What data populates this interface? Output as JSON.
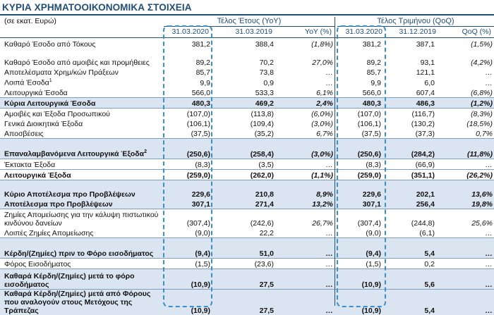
{
  "title": "ΚΥΡΙΑ ΧΡΗΜΑΤΟΟΙΚΟΝΟΜΙΚΑ ΣΤΟΙΧΕΙΑ",
  "unit": "(σε εκατ. Ευρώ)",
  "groups": {
    "yoy": "Τέλος Έτους (YoY)",
    "qoq": "Τέλος Τριμήνου (QoQ)"
  },
  "columns": [
    "31.03.2020",
    "31.03.2019",
    "YoY (%)",
    "31.03.2020",
    "31.12.2019",
    "QoQ (%)"
  ],
  "rows": [
    {
      "label": "Καθαρό Έσοδο από Τόκους",
      "c1": "381,2",
      "c2": "388,4",
      "yoy": "(1,8%)",
      "c4": "381,2",
      "c5": "387,1",
      "qoq": "(1,5%)"
    },
    {
      "label": "Καθαρό Έσοδο από αμοιβές και προμήθειες",
      "c1": "89,2",
      "c2": "70,2",
      "yoy": "27,0%",
      "c4": "89,2",
      "c5": "93,1",
      "qoq": "(4,2%)"
    },
    {
      "label": "Αποτελέσματα Χρημ/κών Πράξεων",
      "c1": "85,7",
      "c2": "73,8",
      "yoy": "…",
      "c4": "85,7",
      "c5": "121,1",
      "qoq": "…"
    },
    {
      "label": "Λοιπά Έσοδα",
      "sup": "1",
      "c1": "9,9",
      "c2": "0,9",
      "yoy": "…",
      "c4": "9,9",
      "c5": "6,0",
      "qoq": "…"
    },
    {
      "label": "Λειτουργικά Έσοδα",
      "c1": "566,0",
      "c2": "533,3",
      "yoy": "6,1%",
      "c4": "566,0",
      "c5": "607,4",
      "qoq": "(6,8%)"
    },
    {
      "label": "Κύρια Λειτουργικά Έσοδα",
      "c1": "480,3",
      "c2": "469,2",
      "yoy": "2,4%",
      "c4": "480,3",
      "c5": "486,3",
      "qoq": "(1,2%)"
    },
    {
      "label": "Αμοιβές και Έξοδα Προσωπικού",
      "c1": "(107,0)",
      "c2": "(113,8)",
      "yoy": "(6,0%)",
      "c4": "(107,0)",
      "c5": "(116,7)",
      "qoq": "(8,3%)"
    },
    {
      "label": "Γενικά Διοικητικά Έξοδα",
      "c1": "(106,1)",
      "c2": "(109,4)",
      "yoy": "(3,0%)",
      "c4": "(106,1)",
      "c5": "(130,2)",
      "qoq": "(18,5%)"
    },
    {
      "label": "Αποσβέσεις",
      "c1": "(37,5)",
      "c2": "(35,2)",
      "yoy": "6,7%",
      "c4": "(37,5)",
      "c5": "(37,3)",
      "qoq": "0,7%"
    },
    {
      "label": "Επαναλαμβανόμενα Λειτουργικά Έξοδα",
      "sup": "2",
      "c1": "(250,6)",
      "c2": "(258,4)",
      "yoy": "(3,0%)",
      "c4": "(250,6)",
      "c5": "(284,2)",
      "qoq": "(11,8%)"
    },
    {
      "label": "Έκτακτα Έξοδα",
      "c1": "(8,3)",
      "c2": "(3,5)",
      "yoy": "…",
      "c4": "(8,3)",
      "c5": "(66,9)",
      "qoq": "…"
    },
    {
      "label": "Λειτουργικά Έξοδα",
      "c1": "(259,0)",
      "c2": "(262,0)",
      "yoy": "(1,1%)",
      "c4": "(259,0)",
      "c5": "(351,1)",
      "qoq": "(26,2%)"
    },
    {
      "label": "Κύριο Αποτέλεσμα προ Προβλέψεων",
      "c1": "229,6",
      "c2": "210,8",
      "yoy": "8,9%",
      "c4": "229,6",
      "c5": "202,1",
      "qoq": "13,6%"
    },
    {
      "label": "Αποτέλεσμα προ Προβλέψεων",
      "c1": "307,1",
      "c2": "271,4",
      "yoy": "13,2%",
      "c4": "307,1",
      "c5": "256,4",
      "qoq": "19,8%"
    },
    {
      "label": "Ζημίες Απομείωσης για την κάλυψη πιστωτικού κινδύνου δανείων",
      "c1": "(307,4)",
      "c2": "(242,6)",
      "yoy": "26,7%",
      "c4": "(307,4)",
      "c5": "(244,8)",
      "qoq": "25,6%"
    },
    {
      "label": "Λοιπές Ζημίες Απομείωσης",
      "c1": "(9,0)",
      "c2": "22,2",
      "yoy": "…",
      "c4": "(9,0)",
      "c5": "(6,1)",
      "qoq": "…"
    },
    {
      "label": "Κέρδη/(Ζημίες) πριν το Φόρο εισοδήματος",
      "c1": "(9,4)",
      "c2": "51,0",
      "yoy": "…",
      "c4": "(9,4)",
      "c5": "5,4",
      "qoq": "…"
    },
    {
      "label": "Φόρος Εισοδήματος",
      "c1": "(1,5)",
      "c2": "(23,6)",
      "yoy": "…",
      "c4": "(1,5)",
      "c5": "0,2",
      "qoq": "…"
    },
    {
      "label": "Καθαρά Κέρδη/(Ζημίες) μετά το φόρο εισοδήματος",
      "c1": "(10,9)",
      "c2": "27,5",
      "yoy": "…",
      "c4": "(10,9)",
      "c5": "5,6",
      "qoq": "…"
    },
    {
      "label": "Καθαρά Κέρδη/(Ζημίες) μετά από Φόρους που αναλογούν στους Μετόχους της Τράπεζας",
      "c1": "(10,9)",
      "c2": "27,5",
      "yoy": "…",
      "c4": "(10,9)",
      "c5": "5,4",
      "qoq": "…"
    }
  ]
}
